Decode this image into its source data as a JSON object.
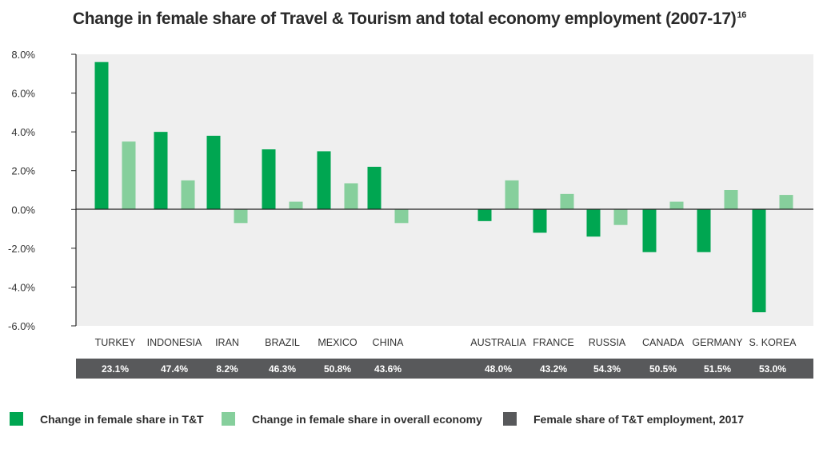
{
  "title": "Change in female share of Travel & Tourism and total economy employment (2007-17)",
  "title_superscript": "16",
  "colors": {
    "tt": "#00a651",
    "economy": "#86cf9c",
    "share_band": "#58595b",
    "plot_bg": "#efefef"
  },
  "chart_data": {
    "type": "bar",
    "ylim": [
      -6,
      8
    ],
    "yticks": [
      8,
      6,
      4,
      2,
      0,
      -2,
      -4,
      -6
    ],
    "ytick_labels": [
      "8.0%",
      "6.0%",
      "4.0%",
      "2.0%",
      "0.0%",
      "-2.0%",
      "-4.0%",
      "-6.0%"
    ],
    "categories": [
      "TURKEY",
      "INDONESIA",
      "IRAN",
      "BRAZIL",
      "MEXICO",
      "CHINA",
      "AUSTRALIA",
      "FRANCE",
      "RUSSIA",
      "CANADA",
      "GERMANY",
      "S. KOREA"
    ],
    "series": [
      {
        "name": "Change in female share in T&T",
        "values": [
          7.6,
          4.0,
          3.8,
          3.1,
          3.0,
          2.2,
          -0.6,
          -1.2,
          -1.4,
          -2.2,
          -2.2,
          -5.3
        ]
      },
      {
        "name": "Change in female share in overall economy",
        "values": [
          3.5,
          1.5,
          -0.7,
          0.4,
          1.35,
          -0.7,
          1.5,
          0.8,
          -0.8,
          0.4,
          1.0,
          0.75
        ]
      }
    ],
    "female_share_2017": {
      "name": "Female share of T&T employment, 2017",
      "labels": [
        "23.1%",
        "47.4%",
        "8.2%",
        "46.3%",
        "50.8%",
        "43.6%",
        "48.0%",
        "43.2%",
        "54.3%",
        "50.5%",
        "51.5%",
        "53.0%"
      ]
    },
    "grid": false,
    "legend_position": "bottom"
  },
  "legend": [
    {
      "label": "Change in female share in T&T",
      "color": "#00a651"
    },
    {
      "label": "Change in female share in overall economy",
      "color": "#86cf9c"
    },
    {
      "label": "Female share of T&T employment, 2017",
      "color": "#58595b"
    }
  ]
}
